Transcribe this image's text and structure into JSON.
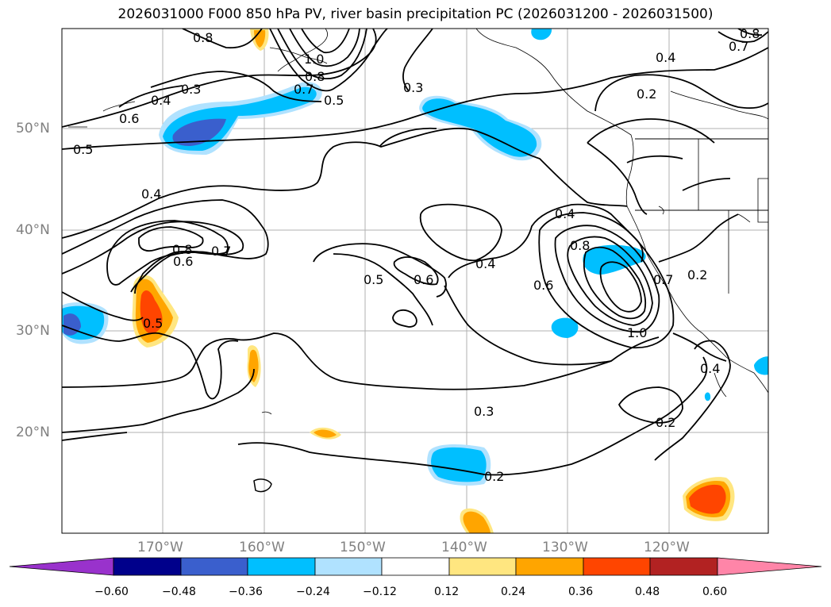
{
  "title": "2026031000 F000 850 hPa PV, river basin precipitation PC (2026031200 - 2026031500)",
  "map": {
    "lat_labels": [
      "50°N",
      "40°N",
      "30°N",
      "20°N"
    ],
    "lon_labels": [
      "170°W",
      "160°W",
      "150°W",
      "140°W",
      "130°W",
      "120°W"
    ],
    "contour_labels": [
      "0.8",
      "1.0",
      "0.8",
      "0.7",
      "0.5",
      "0.3",
      "0.4",
      "0.6",
      "0.5",
      "0.4",
      "0.8",
      "0.6",
      "0.7",
      "0.5",
      "0.5",
      "0.6",
      "0.4",
      "0.4",
      "0.8",
      "0.6",
      "0.7",
      "1.0",
      "0.2",
      "0.4",
      "0.2",
      "0.3",
      "0.2",
      "0.4",
      "0.3",
      "0.7",
      "0.8",
      "0.2"
    ],
    "colors": {
      "contour": "#000000",
      "grid": "#b0b0b0",
      "coast": "#000000"
    }
  },
  "colorbar": {
    "ticks": [
      "−0.60",
      "−0.48",
      "−0.36",
      "−0.24",
      "−0.12",
      "0.12",
      "0.24",
      "0.36",
      "0.48",
      "0.60"
    ],
    "colors": [
      "#9932cc",
      "#00008b",
      "#3a5fcd",
      "#00bfff",
      "#b0e2ff",
      "#ffffff",
      "#ffe680",
      "#ffa500",
      "#ff4500",
      "#b22222",
      "#ff85a8"
    ]
  }
}
